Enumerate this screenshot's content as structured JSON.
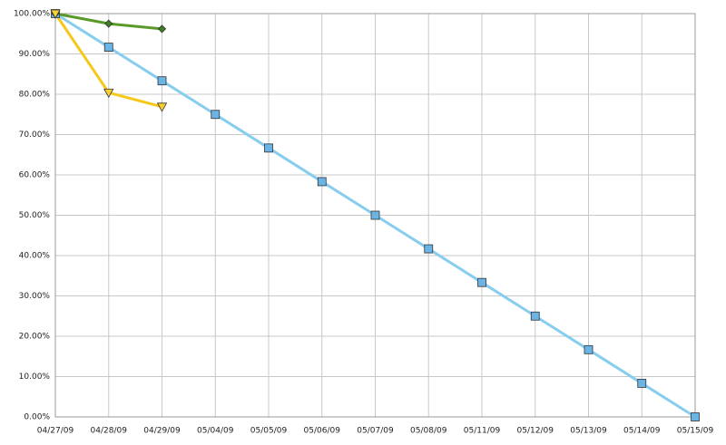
{
  "chart_data": {
    "type": "line",
    "categories": [
      "04/27/09",
      "04/28/09",
      "04/29/09",
      "05/04/09",
      "05/05/09",
      "05/06/09",
      "05/07/09",
      "05/08/09",
      "05/11/09",
      "05/12/09",
      "05/13/09",
      "05/14/09",
      "05/15/09"
    ],
    "series": [
      {
        "color": "#87cdee",
        "marker": "square",
        "marker_color": "#6ab4e6",
        "values": [
          100,
          91.67,
          83.33,
          75,
          66.67,
          58.33,
          50,
          41.67,
          33.33,
          25,
          16.67,
          8.33,
          0
        ]
      },
      {
        "color": "#5a9a2a",
        "marker": "diamond",
        "marker_color": "#3f7f1f",
        "values": [
          100,
          97.5,
          96.2,
          null,
          null,
          null,
          null,
          null,
          null,
          null,
          null,
          null,
          null
        ]
      },
      {
        "color": "#f5c81a",
        "marker": "triangle-down",
        "marker_color": "#f8d033",
        "values": [
          100,
          80.4,
          76.9,
          null,
          null,
          null,
          null,
          null,
          null,
          null,
          null,
          null,
          null
        ]
      }
    ],
    "ylim": [
      0,
      100
    ],
    "yticks": [
      {
        "value": 0,
        "label": "0.00%"
      },
      {
        "value": 10,
        "label": "10.00%"
      },
      {
        "value": 20,
        "label": "20.00%"
      },
      {
        "value": 30,
        "label": "30.00%"
      },
      {
        "value": 40,
        "label": "40.00%"
      },
      {
        "value": 50,
        "label": "50.00%"
      },
      {
        "value": 60,
        "label": "60.00%"
      },
      {
        "value": 70,
        "label": "70.00%"
      },
      {
        "value": 80,
        "label": "80.00%"
      },
      {
        "value": 90,
        "label": "90.00%"
      },
      {
        "value": 100,
        "label": "100.00%"
      }
    ],
    "grid": true
  }
}
